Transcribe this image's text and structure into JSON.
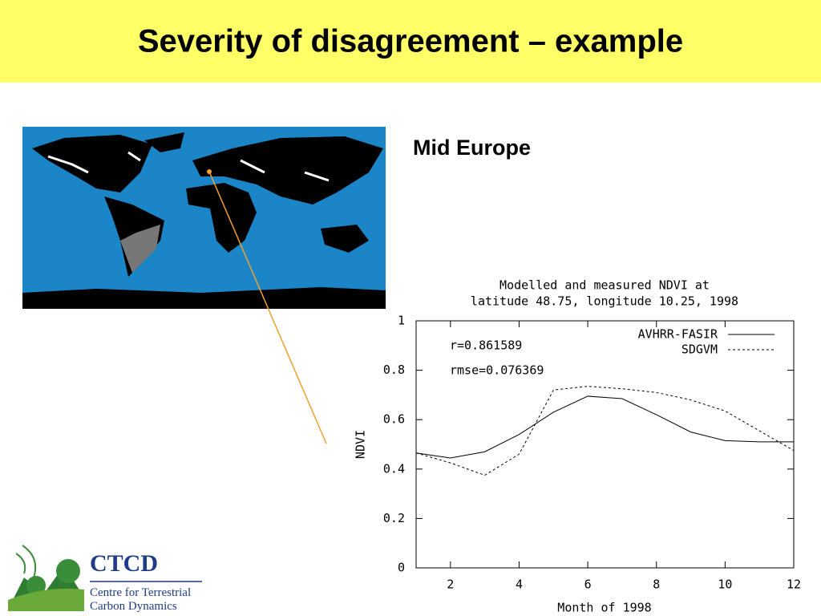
{
  "slide": {
    "title": "Severity of disagreement – example",
    "region_label": "Mid Europe"
  },
  "logo": {
    "acronym": "CTCD",
    "line1": "Centre for Terrestrial",
    "line2": "Carbon Dynamics"
  },
  "chart_data": {
    "type": "line",
    "title": [
      "Modelled and measured NDVI at",
      "latitude 48.75, longitude 10.25, 1998"
    ],
    "x_label": "Month of 1998",
    "y_label": "NDVI",
    "annotations": [
      "r=0.861589",
      "rmse=0.076369"
    ],
    "x": [
      1,
      2,
      3,
      4,
      5,
      6,
      7,
      8,
      9,
      10,
      11,
      12
    ],
    "series": [
      {
        "name": "AVHRR-FASIR",
        "color": "#000000",
        "dash": "solid",
        "values": [
          0.465,
          0.445,
          0.47,
          0.54,
          0.63,
          0.695,
          0.685,
          0.62,
          0.55,
          0.515,
          0.51,
          0.51
        ]
      },
      {
        "name": "SDGVM",
        "color": "#000000",
        "dash": "dashed",
        "values": [
          0.465,
          0.425,
          0.375,
          0.46,
          0.72,
          0.735,
          0.725,
          0.71,
          0.68,
          0.635,
          0.555,
          0.475
        ]
      }
    ],
    "xlim": [
      1,
      12
    ],
    "xticks": [
      2,
      4,
      6,
      8,
      10,
      12
    ],
    "ylim": [
      0,
      1
    ],
    "yticks": [
      0,
      0.2,
      0.4,
      0.6,
      0.8,
      1
    ],
    "legend": "upper right"
  }
}
